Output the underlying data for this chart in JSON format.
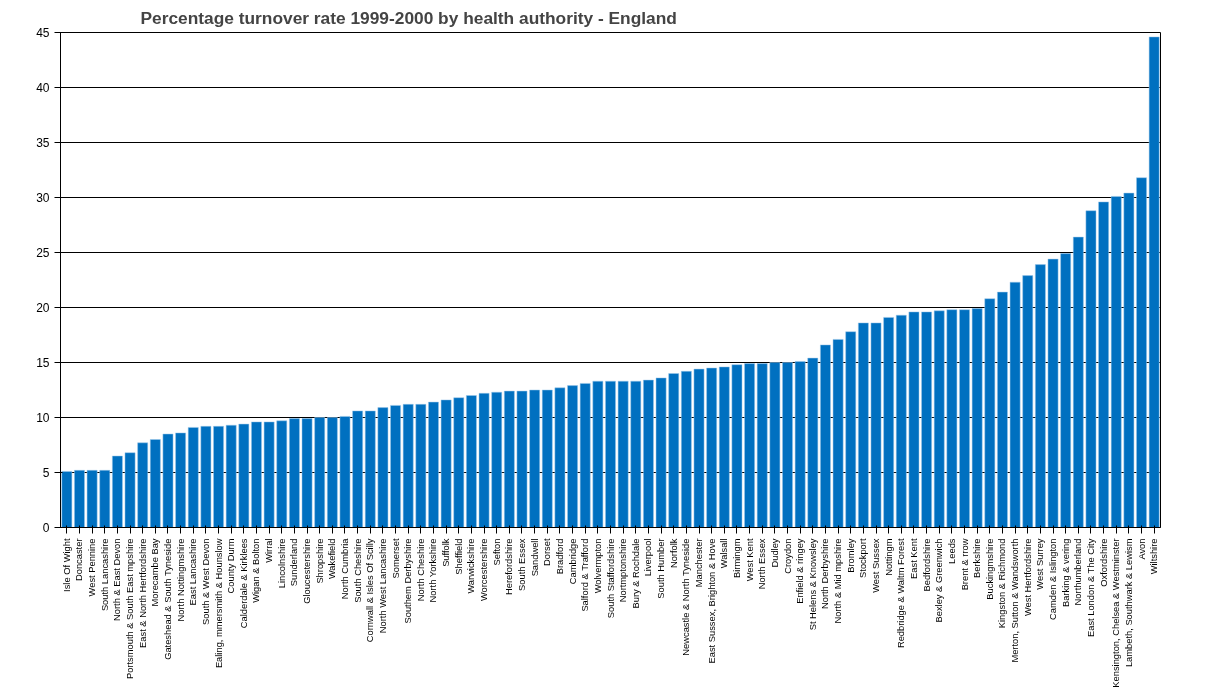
{
  "chart_data": {
    "type": "bar",
    "title": "Percentage turnover rate 1999-2000 by health authority - England",
    "categories": [
      "Isle Of Wight",
      "Doncaster",
      "West Pennine",
      "South Lancashire",
      "North & East Devon",
      "Portsmouth & South East mpshire",
      "East & North Hertfordshire",
      "Morecambe Bay",
      "Gateshead & South Tyneside",
      "North Nottingmshire",
      "East Lancashire",
      "South & West Devon",
      "Ealing, mmersmith & Hounslow",
      "County Durm",
      "Calderdale & Kirklees",
      "Wigan & Bolton",
      "Wirral",
      "Lincolnshire",
      "Sunderland",
      "Gloucestershire",
      "Shropshire",
      "Wakefield",
      "North Cumbria",
      "South Cheshire",
      "Cornwall & Isles Of Scilly",
      "North West Lancashire",
      "Somerset",
      "Southem Derbyshire",
      "North Cheshire",
      "North Yorkshire",
      "Suffolk",
      "Sheffield",
      "Warwickshire",
      "Worcestershire",
      "Sefton",
      "Herefordshire",
      "South Essex",
      "Sandwell",
      "Dorset",
      "Bradford",
      "Cambridge",
      "Salford & Trafford",
      "Wolvermpton",
      "South Staffordshire",
      "Nortmptonshire",
      "Bury & Rochdale",
      "Liverpool",
      "South Humber",
      "Norfolk",
      "Newcastle & North Tyneside",
      "Manchester",
      "East Sussex, Brighton & Hove",
      "Walsall",
      "Birmingm",
      "West Kent",
      "North Essex",
      "Dudley",
      "Croydon",
      "Enfield & ringey",
      "St Helens & Knowsley",
      "North Derbyshire",
      "North & Mid mpshire",
      "Bromley",
      "Stockport",
      "West Sussex",
      "Nottingm",
      "Redbridge & Waltm Forest",
      "East Kent",
      "Bedfordshire",
      "Bexley & Greenwich",
      "Leeds",
      "Brent & rrow",
      "Berkshire",
      "Buckingmshire",
      "Kingston & Richmond",
      "Merton, Sutton & Wandsworth",
      "West Hertfordshire",
      "West Surrey",
      "Camden & Islington",
      "Barking & vering",
      "Northumberland",
      "East London & The City",
      "Oxfordshire",
      "Kensington, Chelsea & Westminster",
      "Lambeth, Southwark & Lewism",
      "Avon",
      "Wiltshire"
    ],
    "values": [
      5.1,
      5.2,
      5.2,
      5.2,
      6.5,
      6.8,
      7.7,
      8.0,
      8.5,
      8.6,
      9.1,
      9.2,
      9.2,
      9.3,
      9.4,
      9.6,
      9.6,
      9.7,
      9.9,
      9.9,
      10.0,
      10.0,
      10.1,
      10.6,
      10.6,
      10.9,
      11.1,
      11.2,
      11.2,
      11.4,
      11.6,
      11.8,
      12.0,
      12.2,
      12.3,
      12.4,
      12.4,
      12.5,
      12.5,
      12.7,
      12.9,
      13.1,
      13.3,
      13.3,
      13.3,
      13.3,
      13.4,
      13.6,
      14.0,
      14.2,
      14.4,
      14.5,
      14.6,
      14.8,
      14.9,
      14.9,
      15.0,
      15.0,
      15.1,
      15.4,
      16.6,
      17.1,
      17.8,
      18.6,
      18.6,
      19.1,
      19.3,
      19.6,
      19.6,
      19.7,
      19.8,
      19.8,
      19.9,
      20.8,
      21.4,
      22.3,
      22.9,
      23.9,
      24.4,
      24.9,
      26.4,
      28.8,
      29.6,
      30.1,
      30.4,
      31.8,
      44.6
    ],
    "color": "#0070c0",
    "ylim": [
      0,
      45
    ],
    "yticks": [
      0,
      5,
      10,
      15,
      20,
      25,
      30,
      35,
      40,
      45
    ],
    "grid": "y"
  }
}
